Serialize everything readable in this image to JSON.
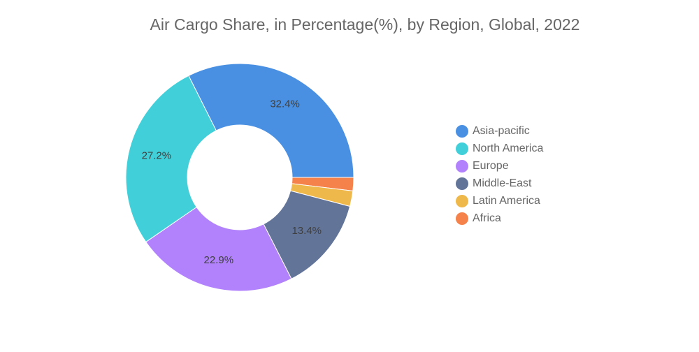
{
  "chart_data": {
    "type": "pie",
    "variant": "donut",
    "title": "Air Cargo Share, in Percentage(%), by Region, Global, 2022",
    "unit": "%",
    "legend_position": "right",
    "slices": [
      {
        "name": "Asia-pacific",
        "value": 32.4,
        "label": "32.4%",
        "color": "#4a90e2"
      },
      {
        "name": "Middle-East",
        "value": 13.4,
        "label": "13.4%",
        "color": "#637499"
      },
      {
        "name": "Europe",
        "value": 22.9,
        "label": "22.9%",
        "color": "#b182fb"
      },
      {
        "name": "North America",
        "value": 27.2,
        "label": "27.2%",
        "color": "#41d0d9"
      },
      {
        "name": "Latin America",
        "value": 2.2,
        "label": "",
        "color": "#efb84b"
      },
      {
        "name": "Africa",
        "value": 1.9,
        "label": "",
        "color": "#f4824a"
      }
    ],
    "legend": [
      "Asia-pacific",
      "North America",
      "Europe",
      "Middle-East",
      "Latin America",
      "Africa"
    ]
  }
}
